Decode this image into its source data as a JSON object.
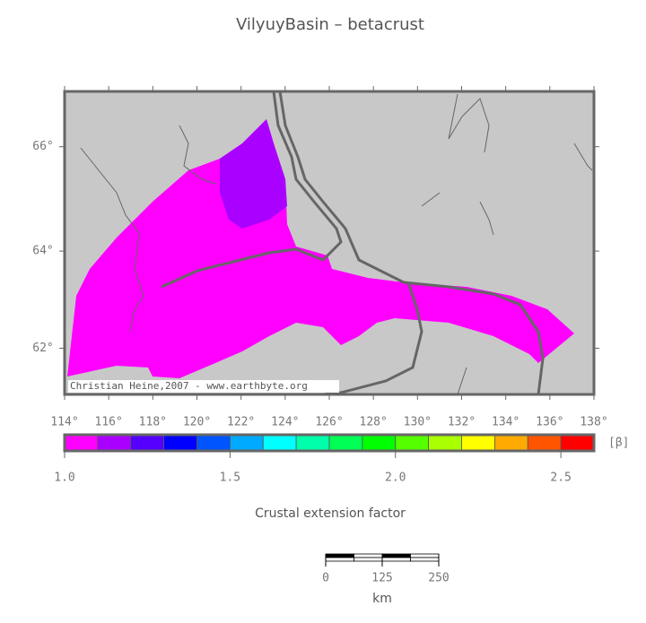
{
  "title": "VilyuyBasin – betacrust",
  "map": {
    "lonlim": [
      114,
      138
    ],
    "latlim": [
      61,
      67
    ],
    "lon_ticks": [
      {
        "value": 114,
        "label": "114°"
      },
      {
        "value": 116,
        "label": "116°"
      },
      {
        "value": 118,
        "label": "118°"
      },
      {
        "value": 120,
        "label": "120°"
      },
      {
        "value": 122,
        "label": "122°"
      },
      {
        "value": 124,
        "label": "124°"
      },
      {
        "value": 126,
        "label": "126°"
      },
      {
        "value": 128,
        "label": "128°"
      },
      {
        "value": 130,
        "label": "130°"
      },
      {
        "value": 132,
        "label": "132°"
      },
      {
        "value": 134,
        "label": "134°"
      },
      {
        "value": 136,
        "label": "136°"
      },
      {
        "value": 138,
        "label": "138°"
      }
    ],
    "lat_ticks": [
      {
        "value": 66,
        "label": "66°"
      },
      {
        "value": 64,
        "label": "64°"
      },
      {
        "value": 62,
        "label": "62°"
      }
    ],
    "credit": "Christian Heine,2007 - www.earthbyte.org"
  },
  "colorbar": {
    "range": [
      1.0,
      2.6
    ],
    "unit": "[β]",
    "label": "Crustal extension factor",
    "colors": [
      "#ff00ff",
      "#aa00ff",
      "#5500ff",
      "#0000ff",
      "#0055ff",
      "#00aaff",
      "#00ffff",
      "#00ffaa",
      "#00ff55",
      "#00ff00",
      "#55ff00",
      "#aaff00",
      "#ffff00",
      "#ffaa00",
      "#ff5500",
      "#ff0000"
    ],
    "ticks": [
      {
        "value": 1.0,
        "label": "1.0"
      },
      {
        "value": 1.5,
        "label": "1.5"
      },
      {
        "value": 2.0,
        "label": "2.0"
      },
      {
        "value": 2.5,
        "label": "2.5"
      }
    ]
  },
  "scalebar": {
    "ticks": [
      0,
      125,
      250
    ],
    "unit": "km"
  }
}
